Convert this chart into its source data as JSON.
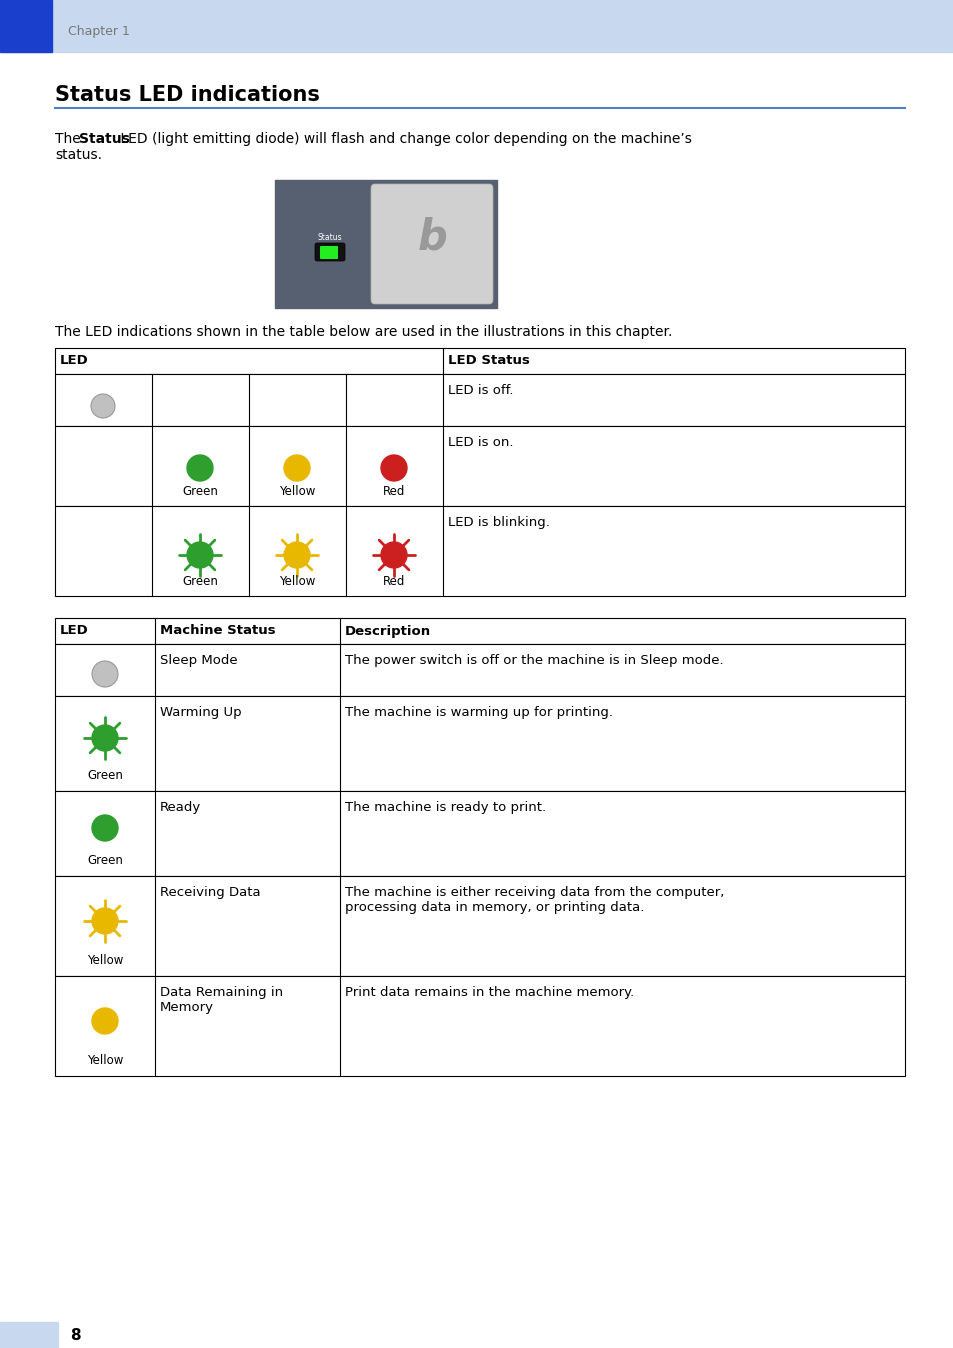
{
  "page_bg": "#ffffff",
  "header_bg": "#c8d8ee",
  "header_accent_blue": "#1a3fcc",
  "header_text": "Chapter 1",
  "header_text_color": "#777777",
  "title": "Status LED indications",
  "title_color": "#000000",
  "hr_color": "#5080c0",
  "body_text1_pre": "The ",
  "body_text1_bold": "Status",
  "body_text1_post": " LED (light emitting diode) will flash and change color depending on the machine’s",
  "body_text1_line2": "status.",
  "body_text2": "The LED indications shown in the table below are used in the illustrations in this chapter.",
  "table1_header_led": "LED",
  "table1_header_status": "LED Status",
  "table1_row1_status": "LED is off.",
  "table1_row2_status": "LED is on.",
  "table1_row3_status": "LED is blinking.",
  "table2_col1": "LED",
  "table2_col2": "Machine Status",
  "table2_col3": "Description",
  "table2_rows": [
    {
      "led_type": "off",
      "led_color": "gray",
      "led_label": "",
      "machine_status": "Sleep Mode",
      "description": "The power switch is off or the machine is in Sleep mode."
    },
    {
      "led_type": "blinking",
      "led_color": "green",
      "led_label": "Green",
      "machine_status": "Warming Up",
      "description": "The machine is warming up for printing."
    },
    {
      "led_type": "on",
      "led_color": "green",
      "led_label": "Green",
      "machine_status": "Ready",
      "description": "The machine is ready to print."
    },
    {
      "led_type": "blinking",
      "led_color": "yellow",
      "led_label": "Yellow",
      "machine_status": "Receiving Data",
      "description": "The machine is either receiving data from the computer,\nprocessing data in memory, or printing data."
    },
    {
      "led_type": "on",
      "led_color": "yellow",
      "led_label": "Yellow",
      "machine_status": "Data Remaining in\nMemory",
      "description": "Print data remains in the machine memory."
    }
  ],
  "footer_num": "8",
  "footer_bg": "#c8d8ee",
  "green": "#2e9e2e",
  "yellow": "#e8b800",
  "red": "#cc2020",
  "gray_off": "#c0c0c0",
  "gray_off_edge": "#999999",
  "font_body": 10.0,
  "font_header_title": 15,
  "font_chapter": 9,
  "font_table": 9.5,
  "font_led_label": 8.5
}
